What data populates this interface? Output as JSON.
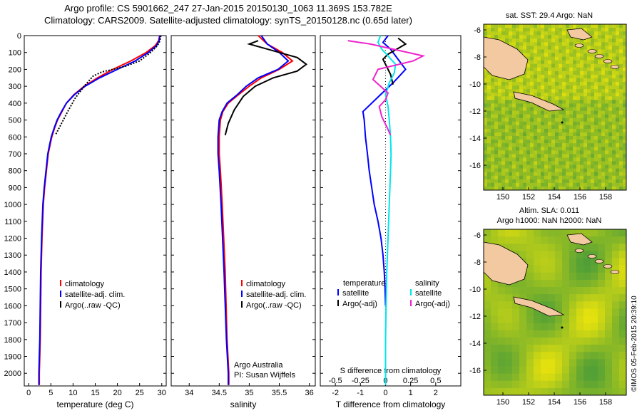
{
  "header": {
    "line1": "Argo profile: CS 5901662_247 27-Jan-2015 20150130_1063 11.369S 153.782E",
    "line2": "Climatology: CARS2009. Satellite-adjusted climatology: synTS_20150128.nc (0.65d later)"
  },
  "maps": {
    "sst_title": "sat. SST: 29.4  Argo: NaN",
    "sla_title1": "Altim. SLA: 0.011",
    "sla_title2": "Argo h1000: NaN h2000: NaN",
    "lon_ticks": [
      "150",
      "152",
      "154",
      "156",
      "158"
    ],
    "lat_ticks": [
      "-6",
      "-8",
      "-10",
      "-12",
      "-14",
      "-16"
    ]
  },
  "credit": "©IMOS 05-Feb-2015 20:39:10",
  "colors": {
    "climatology": "#ff0000",
    "satellite": "#0000ff",
    "argo": "#000000",
    "salinity_sat": "#00e5ee",
    "salinity_argo": "#ee22cc",
    "land": "#f2c9a0"
  },
  "chart_data": [
    {
      "type": "line",
      "name": "temperature-profile",
      "xlabel": "temperature (deg C)",
      "ylabel": "",
      "xlim": [
        -1,
        31
      ],
      "ylim": [
        2075,
        0
      ],
      "xticks": [
        "0",
        "5",
        "10",
        "15",
        "20",
        "25",
        "30"
      ],
      "yticks": [
        "0",
        "100",
        "200",
        "300",
        "400",
        "500",
        "600",
        "700",
        "800",
        "900",
        "1000",
        "1100",
        "1200",
        "1300",
        "1400",
        "1500",
        "1600",
        "1700",
        "1800",
        "1900",
        "2000"
      ],
      "legend": {
        "placement": "bottom-left",
        "entries": [
          "climatology",
          "satellite-adj. clim.",
          "Argo(..raw -QC)"
        ]
      },
      "series": [
        {
          "name": "climatology",
          "x": [
            29.5,
            29.3,
            28.5,
            26.5,
            23.0,
            19.0,
            15.5,
            12.5,
            10.2,
            8.5,
            7.5,
            6.5,
            5.8,
            5.2,
            4.8,
            4.4,
            4.0,
            3.6,
            3.3,
            3.0,
            2.8,
            2.7,
            2.6,
            2.5,
            2.4,
            2.4
          ],
          "y": [
            0,
            30,
            60,
            100,
            150,
            200,
            250,
            300,
            350,
            400,
            450,
            500,
            550,
            600,
            650,
            700,
            800,
            900,
            1000,
            1200,
            1400,
            1600,
            1800,
            1900,
            2000,
            2070
          ]
        },
        {
          "name": "satellite-adj. clim.",
          "x": [
            29.6,
            29.4,
            28.8,
            27.0,
            24.0,
            20.0,
            16.0,
            12.7,
            10.3,
            8.5,
            7.4,
            6.4,
            5.7,
            5.1,
            4.7,
            4.3,
            3.9,
            3.5,
            3.2,
            2.9,
            2.7,
            2.6,
            2.5,
            2.4,
            2.3,
            2.3
          ],
          "y": [
            0,
            30,
            60,
            100,
            150,
            200,
            250,
            300,
            350,
            400,
            450,
            500,
            550,
            600,
            650,
            700,
            800,
            900,
            1000,
            1200,
            1400,
            1600,
            1800,
            1900,
            2000,
            2070
          ]
        },
        {
          "name": "Argo(..raw -QC)",
          "x": [
            29.8,
            29.7,
            29.5,
            29.0,
            27.5,
            25.0,
            22.0,
            19.0,
            16.5,
            14.5,
            12.5,
            10.5,
            8.8,
            7.0,
            6.0
          ],
          "y": [
            0,
            15,
            35,
            60,
            100,
            150,
            180,
            200,
            215,
            240,
            300,
            370,
            450,
            540,
            590
          ]
        }
      ]
    },
    {
      "type": "line",
      "name": "salinity-profile",
      "xlabel": "salinity",
      "ylabel": "",
      "xlim": [
        33.7,
        36.1
      ],
      "ylim": [
        2075,
        0
      ],
      "xticks": [
        "34",
        "34.5",
        "35",
        "35.5",
        "36"
      ],
      "legend": {
        "placement": "bottom-right",
        "entries": [
          "climatology",
          "satellite-adj. clim.",
          "Argo(..raw -QC)"
        ]
      },
      "annotation": [
        "Argo Australia",
        "PI: Susan Wijffels"
      ],
      "series": [
        {
          "name": "climatology",
          "x": [
            35.15,
            35.3,
            35.55,
            35.72,
            35.5,
            35.2,
            35.0,
            34.82,
            34.65,
            34.56,
            34.52,
            34.5,
            34.5,
            34.52,
            34.55,
            34.6,
            34.63,
            34.66,
            34.66
          ],
          "y": [
            0,
            50,
            100,
            150,
            200,
            250,
            300,
            350,
            400,
            450,
            500,
            600,
            700,
            800,
            1000,
            1400,
            1800,
            2000,
            2070
          ]
        },
        {
          "name": "satellite-adj. clim.",
          "x": [
            35.2,
            35.3,
            35.5,
            35.65,
            35.48,
            35.15,
            34.95,
            34.8,
            34.63,
            34.55,
            34.5,
            34.48,
            34.48,
            34.5,
            34.53,
            34.58,
            34.62,
            34.65,
            34.65
          ],
          "y": [
            0,
            50,
            100,
            150,
            200,
            250,
            300,
            350,
            400,
            450,
            500,
            600,
            700,
            800,
            1000,
            1400,
            1800,
            2000,
            2070
          ]
        },
        {
          "name": "Argo(..raw -QC)",
          "x": [
            35.15,
            35.0,
            35.4,
            35.8,
            35.95,
            35.8,
            35.4,
            35.1,
            34.9,
            34.75,
            34.65,
            34.6
          ],
          "y": [
            30,
            50,
            90,
            130,
            170,
            210,
            250,
            300,
            360,
            440,
            520,
            590
          ]
        }
      ]
    },
    {
      "type": "line",
      "name": "difference-profile",
      "xlabel": "T difference from climatology",
      "xlabel_top": "S difference from climatology",
      "xlim": [
        -2.6,
        3.0
      ],
      "ylim": [
        2075,
        0
      ],
      "xticks": [
        "-2",
        "-1",
        "0",
        "1",
        "2"
      ],
      "sticks": [
        "-0.5",
        "-0.25",
        "0",
        "0.25",
        "0.5"
      ],
      "legend": {
        "placement": "bottom",
        "columns": [
          "temperature",
          "salinity"
        ],
        "entries": [
          "satellite",
          "Argo(-adj)",
          "satellite",
          "Argo(-adj)"
        ]
      },
      "series": [
        {
          "name": "temperature satellite",
          "x": [
            0.1,
            -0.1,
            0.2,
            0.4,
            0.8,
            0.3,
            -0.2,
            -0.9,
            -0.85,
            -0.8,
            -0.72,
            -0.65,
            -0.55,
            -0.45,
            -0.3,
            -0.18,
            -0.1,
            -0.05,
            -0.02,
            0.0
          ],
          "y": [
            0,
            40,
            80,
            120,
            200,
            280,
            350,
            450,
            500,
            600,
            700,
            800,
            900,
            1000,
            1100,
            1200,
            1300,
            1400,
            1500,
            1600
          ]
        },
        {
          "name": "temperature Argo(-adj)",
          "x": [
            0.5,
            0.8,
            0.1,
            -0.1,
            0.2,
            0.3
          ],
          "y": [
            15,
            50,
            110,
            140,
            230,
            290
          ]
        },
        {
          "name": "salinity satellite",
          "x": [
            -0.2,
            -0.3,
            -0.15,
            0.1,
            0.4,
            0.35,
            0.15,
            0.0,
            0.1,
            0.15,
            0.2,
            0.22,
            0.2,
            0.15,
            0.1,
            0.05,
            0.02,
            0.0,
            0.0
          ],
          "y": [
            0,
            40,
            80,
            120,
            170,
            220,
            280,
            350,
            420,
            500,
            600,
            700,
            800,
            1000,
            1200,
            1400,
            1600,
            1800,
            2070
          ]
        },
        {
          "name": "salinity Argo(-adj)",
          "x": [
            -1.5,
            -0.6,
            0.3,
            1.5,
            1.1,
            -0.3,
            -0.5,
            -0.2,
            0.1,
            0.0,
            -0.25,
            -0.15,
            0.05,
            0.2
          ],
          "y": [
            30,
            50,
            80,
            120,
            150,
            200,
            260,
            300,
            340,
            380,
            420,
            480,
            540,
            590
          ]
        }
      ]
    }
  ]
}
